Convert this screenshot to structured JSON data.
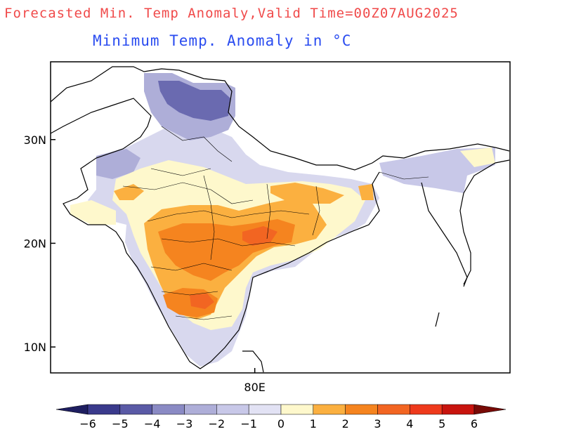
{
  "title": "Forecasted Min. Temp Anomaly,Valid Time=00Z07AUG2025",
  "subtitle": "Minimum Temp. Anomaly in °C",
  "axes": {
    "y_ticks": [
      {
        "label": "30N",
        "lat": 30
      },
      {
        "label": "20N",
        "lat": 20
      },
      {
        "label": "10N",
        "lat": 10
      }
    ],
    "x_ticks": [
      {
        "label": "80E",
        "lon": 80
      }
    ],
    "lon_range": [
      60,
      105
    ],
    "lat_range": [
      7.5,
      37.5
    ]
  },
  "colorbar": {
    "labels": [
      "−6",
      "−5",
      "−4",
      "−3",
      "−2",
      "−1",
      "0",
      "1",
      "2",
      "3",
      "4",
      "5",
      "6"
    ],
    "colors": [
      "#1e1e60",
      "#3a3a8c",
      "#5a5aa6",
      "#8a8ac4",
      "#aeaed8",
      "#c8c8e8",
      "#e2e2f4",
      "#fef8cc",
      "#fbb040",
      "#f5841f",
      "#f26522",
      "#ee3a1c",
      "#c8140e",
      "#780a06"
    ]
  },
  "map_colors": {
    "land": "#ffffff",
    "border": "#000000",
    "anomaly_cold": "#aeaed8",
    "anomaly_cool": "#d8d8ee",
    "anomaly_cold_deep": "#6a6ab0",
    "anomaly_neutral": "#fef8cc",
    "anomaly_warm": "#fbb040",
    "anomaly_hot": "#f5841f"
  }
}
